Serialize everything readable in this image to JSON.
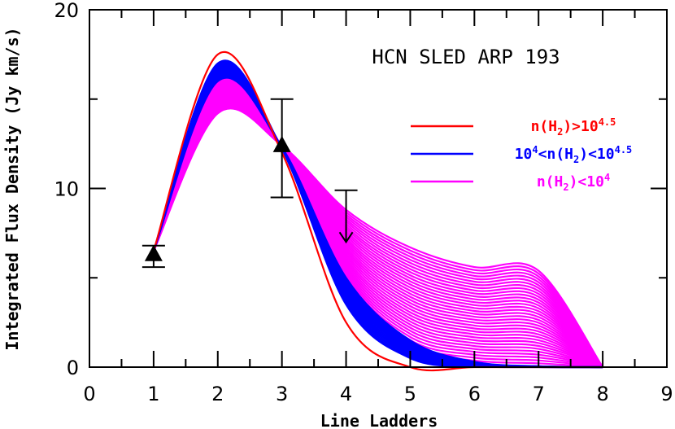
{
  "chart_data": {
    "type": "line",
    "title": "HCN SLED ARP 193",
    "xlabel": "Line Ladders",
    "ylabel": "Integrated Flux Density (Jy km/s)",
    "xlim": [
      0,
      9
    ],
    "ylim": [
      0,
      20
    ],
    "x_ticks": [
      "0",
      "1",
      "2",
      "3",
      "4",
      "5",
      "6",
      "7",
      "8",
      "9"
    ],
    "y_ticks": [
      "0",
      "10",
      "20"
    ],
    "grid": false,
    "legend_placement": "right",
    "colors": {
      "red": "#ff0000",
      "blue": "#0000ff",
      "magenta": "#ff00ff"
    },
    "legend": [
      {
        "color": "#ff0000",
        "base": "n(H",
        "sub": "2",
        "mid": ")>10",
        "sup": "4.5",
        "tail": ""
      },
      {
        "color": "#0000ff",
        "base": "10",
        "sup0": "4",
        "mid0": "<n(H",
        "sub": "2",
        "mid": ")<10",
        "sup": "4.5",
        "tail": ""
      },
      {
        "color": "#ff00ff",
        "base": "n(H",
        "sub": "2",
        "mid": ")<10",
        "sup": "4",
        "tail": ""
      }
    ],
    "observations": [
      {
        "x": 1,
        "y": 6.3,
        "err_low": 5.6,
        "err_high": 6.8,
        "type": "detection"
      },
      {
        "x": 3,
        "y": 12.4,
        "err_low": 9.5,
        "err_high": 15.0,
        "type": "detection"
      },
      {
        "x": 4,
        "y": 9.9,
        "err_low": 7.0,
        "err_high": 9.9,
        "type": "upper_limit"
      }
    ],
    "series": [
      {
        "group": "red",
        "x": [
          1,
          2,
          3,
          4,
          5,
          6,
          7,
          8
        ],
        "y": [
          6.5,
          17.5,
          12.0,
          2.5,
          0.0,
          0.0,
          0.0,
          0.0
        ]
      },
      {
        "group": "blue",
        "x": [
          1,
          2,
          3,
          4,
          5,
          6,
          7,
          8
        ],
        "y": [
          6.5,
          17.0,
          12.2,
          3.5,
          0.5,
          0.05,
          0.0,
          0.0
        ]
      },
      {
        "group": "blue",
        "x": [
          1,
          2,
          3,
          4,
          5,
          6,
          7,
          8
        ],
        "y": [
          6.5,
          16.0,
          12.3,
          5.0,
          1.5,
          0.3,
          0.05,
          0.0
        ]
      },
      {
        "group": "magenta",
        "x": [
          1,
          2,
          3,
          4,
          5,
          6,
          7,
          8
        ],
        "y": [
          6.5,
          16.5,
          12.3,
          4.5,
          1.0,
          0.2,
          0.05,
          0.0
        ]
      },
      {
        "group": "magenta",
        "x": [
          1,
          2,
          3,
          4,
          5,
          6,
          7,
          8
        ],
        "y": [
          6.5,
          14.2,
          12.4,
          8.8,
          6.7,
          5.6,
          5.4,
          0.0
        ]
      }
    ]
  }
}
